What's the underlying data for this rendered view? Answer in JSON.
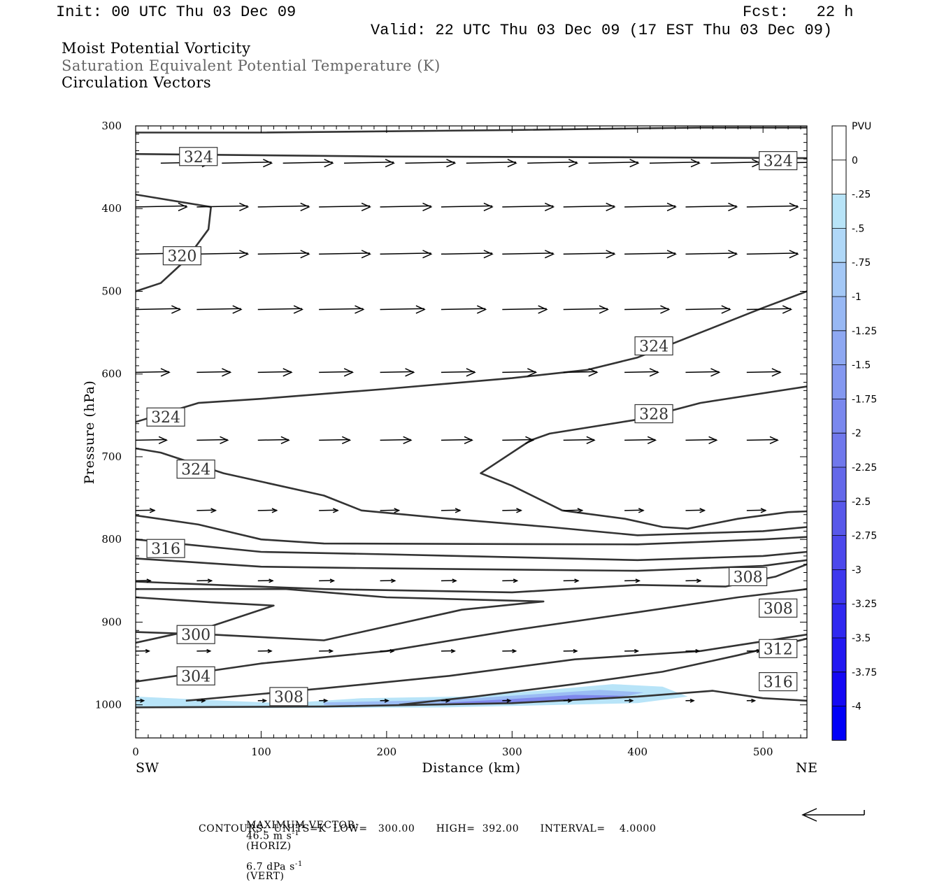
{
  "header": {
    "init": "Init: 00 UTC Thu 03 Dec 09",
    "fcst": "Fcst:   22 h",
    "valid": "Valid: 22 UTC Thu 03 Dec 09 (17 EST Thu 03 Dec 09)",
    "fields": [
      "Moist Potential Vorticity",
      "Saturation Equivalent Potential Temperature (K)",
      "Circulation Vectors"
    ],
    "colors": {
      "primary": "#000000",
      "secondary": "#666666"
    }
  },
  "footer": {
    "max_vector_label": "MAXIMUM VECTOR:",
    "horiz_value": "46.5 m s",
    "horiz_unit": "(HORIZ)",
    "vert_value": "6.7 dPa s",
    "vert_unit": "(VERT)",
    "exponent": "-1",
    "contours_line": "CONTOURS:  UNITS=K  LOW=   300.00      HIGH=  392.00      INTERVAL=    4.0000",
    "ref_arrow_icon": "arrow-left-icon"
  },
  "chart_data": {
    "type": "contour",
    "xlabel": "Distance (km)",
    "ylabel": "Pressure (hPa)",
    "xlim": [
      0,
      535
    ],
    "ylim": [
      1040,
      300
    ],
    "x_ticks": [
      0,
      100,
      200,
      300,
      400,
      500
    ],
    "y_ticks": [
      300,
      400,
      500,
      600,
      700,
      800,
      900,
      1000
    ],
    "x_end_labels": {
      "left": "SW",
      "right": "NE"
    },
    "contour_color": "#333333",
    "contours": [
      {
        "level": 324,
        "points": [
          [
            0,
            334
          ],
          [
            200,
            337
          ],
          [
            400,
            338
          ],
          [
            535,
            339
          ]
        ]
      },
      {
        "level": null,
        "points": [
          [
            0,
            308
          ],
          [
            100,
            308
          ],
          [
            300,
            305
          ],
          [
            450,
            302
          ],
          [
            535,
            302
          ]
        ]
      },
      {
        "level": 320,
        "points": [
          [
            0,
            383
          ],
          [
            60,
            398
          ],
          [
            58,
            425
          ],
          [
            40,
            462
          ],
          [
            20,
            490
          ],
          [
            0,
            500
          ]
        ]
      },
      {
        "level": 324,
        "points": [
          [
            0,
            658
          ],
          [
            50,
            635
          ],
          [
            100,
            630
          ],
          [
            200,
            618
          ],
          [
            300,
            605
          ],
          [
            360,
            595
          ],
          [
            400,
            580
          ],
          [
            450,
            550
          ],
          [
            500,
            520
          ],
          [
            535,
            500
          ]
        ]
      },
      {
        "level": 328,
        "points": [
          [
            535,
            615
          ],
          [
            450,
            635
          ],
          [
            400,
            655
          ],
          [
            330,
            672
          ],
          [
            315,
            680
          ],
          [
            275,
            720
          ],
          [
            300,
            735
          ],
          [
            340,
            765
          ],
          [
            390,
            775
          ],
          [
            420,
            785
          ],
          [
            440,
            787
          ],
          [
            480,
            775
          ],
          [
            520,
            767
          ],
          [
            535,
            766
          ]
        ]
      },
      {
        "level": 324,
        "points": [
          [
            0,
            690
          ],
          [
            20,
            695
          ],
          [
            70,
            720
          ],
          [
            150,
            747
          ],
          [
            180,
            765
          ],
          [
            250,
            775
          ],
          [
            330,
            785
          ],
          [
            400,
            795
          ],
          [
            500,
            790
          ],
          [
            535,
            785
          ]
        ]
      },
      {
        "level": 316,
        "points": [
          [
            0,
            771
          ],
          [
            50,
            782
          ],
          [
            100,
            800
          ],
          [
            150,
            805
          ],
          [
            400,
            806
          ],
          [
            500,
            800
          ],
          [
            535,
            797
          ]
        ]
      },
      {
        "level": null,
        "points": [
          [
            0,
            800
          ],
          [
            100,
            815
          ],
          [
            200,
            818
          ],
          [
            400,
            825
          ],
          [
            500,
            820
          ],
          [
            535,
            815
          ]
        ]
      },
      {
        "level": null,
        "points": [
          [
            0,
            823
          ],
          [
            100,
            833
          ],
          [
            200,
            835
          ],
          [
            400,
            838
          ],
          [
            500,
            832
          ],
          [
            535,
            825
          ]
        ]
      },
      {
        "level": 308,
        "points": [
          [
            0,
            851
          ],
          [
            80,
            856
          ],
          [
            150,
            860
          ],
          [
            300,
            864
          ],
          [
            400,
            855
          ],
          [
            470,
            857
          ],
          [
            510,
            845
          ],
          [
            535,
            830
          ]
        ]
      },
      {
        "level": 300,
        "points": [
          [
            0,
            870
          ],
          [
            60,
            876
          ],
          [
            110,
            880
          ],
          [
            60,
            905
          ],
          [
            30,
            915
          ],
          [
            0,
            925
          ]
        ]
      },
      {
        "level": null,
        "points": [
          [
            0,
            912
          ],
          [
            60,
            915
          ],
          [
            150,
            922
          ],
          [
            260,
            885
          ],
          [
            325,
            875
          ],
          [
            200,
            870
          ],
          [
            120,
            860
          ],
          [
            0,
            860
          ]
        ]
      },
      {
        "level": 308,
        "points": [
          [
            210,
            1000
          ],
          [
            270,
            990
          ],
          [
            350,
            975
          ],
          [
            420,
            960
          ],
          [
            480,
            940
          ],
          [
            535,
            920
          ]
        ]
      },
      {
        "level": 304,
        "points": [
          [
            0,
            972
          ],
          [
            100,
            950
          ],
          [
            200,
            935
          ],
          [
            300,
            910
          ],
          [
            400,
            888
          ],
          [
            480,
            870
          ],
          [
            535,
            860
          ]
        ]
      },
      {
        "level": 312,
        "points": [
          [
            40,
            995
          ],
          [
            150,
            980
          ],
          [
            250,
            965
          ],
          [
            350,
            945
          ],
          [
            450,
            935
          ],
          [
            535,
            915
          ]
        ]
      },
      {
        "level": 316,
        "points": [
          [
            0,
            1003
          ],
          [
            150,
            1002
          ],
          [
            300,
            998
          ],
          [
            400,
            990
          ],
          [
            460,
            983
          ],
          [
            500,
            992
          ],
          [
            535,
            995
          ]
        ]
      }
    ],
    "contour_labels": [
      {
        "text": "324",
        "x": 50,
        "p": 337
      },
      {
        "text": "324",
        "x": 512,
        "p": 342
      },
      {
        "text": "320",
        "x": 37,
        "p": 457
      },
      {
        "text": "324",
        "x": 413,
        "p": 566
      },
      {
        "text": "324",
        "x": 24,
        "p": 652
      },
      {
        "text": "328",
        "x": 413,
        "p": 648
      },
      {
        "text": "324",
        "x": 48,
        "p": 715
      },
      {
        "text": "316",
        "x": 24,
        "p": 811
      },
      {
        "text": "308",
        "x": 488,
        "p": 845
      },
      {
        "text": "300",
        "x": 48,
        "p": 915
      },
      {
        "text": "308",
        "x": 512,
        "p": 883
      },
      {
        "text": "304",
        "x": 48,
        "p": 965
      },
      {
        "text": "312",
        "x": 512,
        "p": 932
      },
      {
        "text": "308",
        "x": 122,
        "p": 990
      },
      {
        "text": "316",
        "x": 512,
        "p": 972
      }
    ],
    "vector_rows": [
      {
        "p": 345,
        "u": 0.37,
        "x_start": 20,
        "x_step": 48.7,
        "count": 11
      },
      {
        "p": 398,
        "u": 0.38,
        "x_start": 0,
        "x_step": 48.7,
        "count": 11
      },
      {
        "p": 455,
        "u": 0.38,
        "x_start": 0,
        "x_step": 48.7,
        "count": 11
      },
      {
        "p": 522,
        "u": 0.33,
        "x_start": 0,
        "x_step": 48.7,
        "count": 11
      },
      {
        "p": 598,
        "u": 0.25,
        "x_start": 0,
        "x_step": 48.7,
        "count": 11
      },
      {
        "p": 680,
        "u": 0.23,
        "x_start": 0,
        "x_step": 48.7,
        "count": 11
      },
      {
        "p": 765,
        "u": 0.14,
        "x_start": 0,
        "x_step": 48.7,
        "count": 11
      },
      {
        "p": 850,
        "u": 0.11,
        "x_start": 0,
        "x_step": 48.7,
        "count": 11
      },
      {
        "p": 935,
        "u": 0.1,
        "x_start": 0,
        "x_step": 48.7,
        "count": 11
      },
      {
        "p": 995,
        "u": 0.06,
        "x_start": 0,
        "x_step": 48.7,
        "count": 11
      }
    ],
    "shading": [
      {
        "level": -0.25,
        "color": "#b8e4f8",
        "points": [
          [
            0,
            990
          ],
          [
            70,
            995
          ],
          [
            120,
            998
          ],
          [
            180,
            992
          ],
          [
            260,
            990
          ],
          [
            320,
            983
          ],
          [
            380,
            975
          ],
          [
            420,
            978
          ],
          [
            440,
            990
          ],
          [
            400,
            998
          ],
          [
            250,
            1003
          ],
          [
            100,
            1004
          ],
          [
            0,
            1004
          ]
        ]
      },
      {
        "level": -0.75,
        "color": "#9bbcf4",
        "points": [
          [
            150,
            997
          ],
          [
            220,
            995
          ],
          [
            270,
            992
          ],
          [
            320,
            987
          ],
          [
            370,
            982
          ],
          [
            405,
            985
          ],
          [
            380,
            993
          ],
          [
            300,
            998
          ],
          [
            200,
            1001
          ],
          [
            150,
            1000
          ]
        ]
      },
      {
        "level": -1.5,
        "color": "#7f88ec",
        "points": [
          [
            240,
            998
          ],
          [
            300,
            993
          ],
          [
            350,
            988
          ],
          [
            390,
            989
          ],
          [
            360,
            994
          ],
          [
            300,
            998
          ]
        ]
      }
    ],
    "colorbar": {
      "title": "PVU",
      "labels": [
        "0",
        "-.25",
        "-.5",
        "-.75",
        "-1",
        "-1.25",
        "-1.5",
        "-1.75",
        "-2",
        "-2.25",
        "-2.5",
        "-2.75",
        "-3",
        "-3.25",
        "-3.5",
        "-3.75",
        "-4"
      ],
      "colors": [
        "#ffffff",
        "#ffffff",
        "#b8e4f8",
        "#b0d8f8",
        "#a4c8f6",
        "#98b8f4",
        "#8ea8f2",
        "#8498f0",
        "#7a88ee",
        "#7078ec",
        "#6468ea",
        "#5858ea",
        "#4c48ec",
        "#3e38ee",
        "#3028f0",
        "#2218f2",
        "#1408f4",
        "#0000f8"
      ]
    }
  }
}
